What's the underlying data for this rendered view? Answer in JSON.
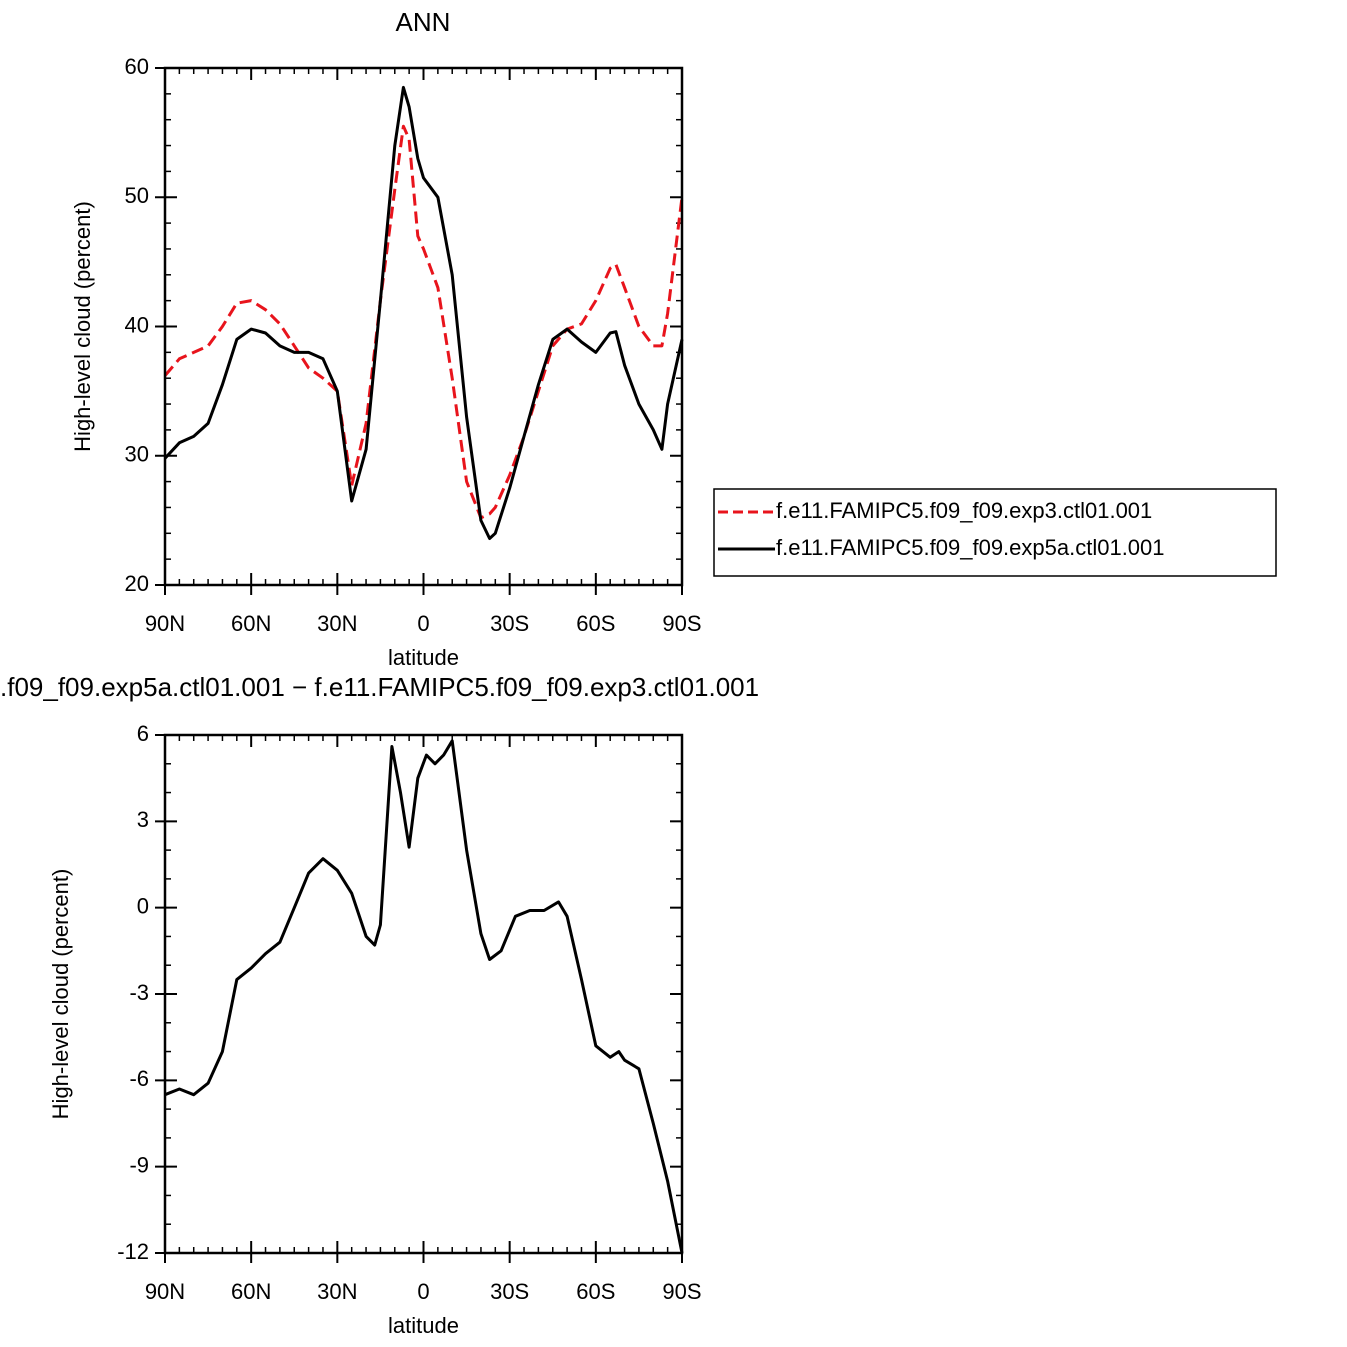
{
  "chart_data": [
    {
      "type": "line",
      "title": "ANN",
      "x_label": "latitude",
      "y_label": "High-level cloud (percent)",
      "x": [
        90,
        85,
        80,
        75,
        70,
        65,
        60,
        55,
        50,
        45,
        40,
        35,
        30,
        25,
        20,
        15,
        10,
        7,
        5,
        2,
        0,
        -5,
        -10,
        -15,
        -20,
        -23,
        -25,
        -30,
        -35,
        -40,
        -45,
        -50,
        -55,
        -60,
        -65,
        -67,
        -70,
        -75,
        -80,
        -83,
        -85,
        -90
      ],
      "series": [
        {
          "name": "f.e11.FAMIPC5.f09_f09.exp3.ctl01.001",
          "color": "#e8141c",
          "dashed": true,
          "values": [
            36.2,
            37.5,
            38.0,
            38.5,
            40.0,
            41.8,
            42.0,
            41.3,
            40.2,
            38.5,
            36.8,
            36.0,
            35.0,
            27.7,
            32.5,
            42,
            50.6,
            55.5,
            54.5,
            47,
            46,
            43,
            36,
            28,
            25.2,
            25.5,
            26.0,
            28.5,
            31.5,
            35,
            38.5,
            39.8,
            40.2,
            42.0,
            44.5,
            44.8,
            43,
            40,
            38.5,
            38.5,
            41,
            50
          ]
        },
        {
          "name": "f.e11.FAMIPC5.f09_f09.exp5a.ctl01.001",
          "color": "#000000",
          "dashed": false,
          "values": [
            29.8,
            31.0,
            31.5,
            32.5,
            35.5,
            39.0,
            39.8,
            39.5,
            38.5,
            38.0,
            38.0,
            37.5,
            35.0,
            26.5,
            30.5,
            42,
            54,
            58.5,
            57,
            53,
            51.5,
            50,
            44,
            33,
            25,
            23.6,
            24.0,
            27.5,
            31.5,
            35.5,
            39.0,
            39.8,
            38.8,
            38.0,
            39.5,
            39.6,
            37,
            34,
            32,
            30.5,
            34,
            39
          ]
        }
      ],
      "xlim": [
        90,
        -90
      ],
      "xticks": [
        {
          "value": 90,
          "label": "90N"
        },
        {
          "value": 60,
          "label": "60N"
        },
        {
          "value": 30,
          "label": "30N"
        },
        0,
        {
          "value": -30,
          "label": "30S"
        },
        {
          "value": -60,
          "label": "60S"
        },
        {
          "value": -90,
          "label": "90S"
        }
      ],
      "ylim": [
        20,
        60
      ],
      "yticks": [
        20,
        30,
        40,
        50,
        60
      ],
      "legend": "right"
    },
    {
      "type": "line",
      "title": ".f09_f09.exp5a.ctl01.001 − f.e11.FAMIPC5.f09_f09.exp3.ctl01.001",
      "x_label": "latitude",
      "y_label": "High-level cloud (percent)",
      "x": [
        90,
        85,
        80,
        75,
        70,
        65,
        60,
        55,
        50,
        45,
        40,
        35,
        30,
        25,
        20,
        17,
        15,
        11,
        8,
        5,
        2,
        -1,
        -4,
        -7,
        -10,
        -15,
        -20,
        -23,
        -27,
        -32,
        -37,
        -42,
        -47,
        -50,
        -55,
        -60,
        -65,
        -68,
        -70,
        -75,
        -80,
        -85,
        -90
      ],
      "series": [
        {
          "color": "#000000",
          "dashed": false,
          "values": [
            -6.5,
            -6.3,
            -6.5,
            -6.1,
            -5.0,
            -2.5,
            -2.1,
            -1.6,
            -1.2,
            0.0,
            1.2,
            1.7,
            1.3,
            0.5,
            -1.0,
            -1.3,
            -0.6,
            5.6,
            4.0,
            2.1,
            4.5,
            5.3,
            5.0,
            5.3,
            5.8,
            2.0,
            -0.9,
            -1.8,
            -1.5,
            -0.3,
            -0.1,
            -0.1,
            0.2,
            -0.3,
            -2.5,
            -4.8,
            -5.2,
            -5.0,
            -5.3,
            -5.6,
            -7.5,
            -9.5,
            -12
          ]
        }
      ],
      "xlim": [
        90,
        -90
      ],
      "xticks": [
        {
          "value": 90,
          "label": "90N"
        },
        {
          "value": 60,
          "label": "60N"
        },
        {
          "value": 30,
          "label": "30N"
        },
        0,
        {
          "value": -30,
          "label": "30S"
        },
        {
          "value": -60,
          "label": "60S"
        },
        {
          "value": -90,
          "label": "90S"
        }
      ],
      "ylim": [
        -12,
        6
      ],
      "yticks": [
        -12,
        -9,
        -6,
        -3,
        0,
        3,
        6
      ]
    }
  ]
}
